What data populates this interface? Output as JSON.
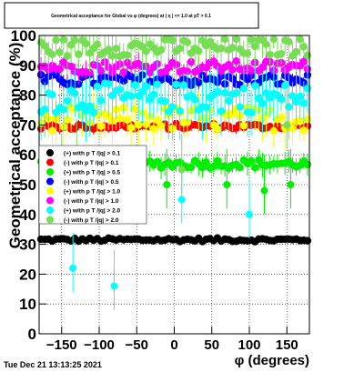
{
  "chart_data": {
    "type": "scatter",
    "title": "Geometrical acceptance for Global vs φ (degrees) at | η | <= 1.0 at pT > 0.1",
    "xlabel": "φ (degrees)",
    "ylabel": "Geometrical acceptance (%)",
    "xlim": [
      -180,
      180
    ],
    "ylim": [
      0,
      100
    ],
    "x_ticks": [
      -150,
      -100,
      -50,
      0,
      50,
      100,
      150
    ],
    "x_tick_labels": [
      "−150",
      "−100",
      "−50",
      "0",
      "50",
      "100",
      "150"
    ],
    "y_ticks": [
      0,
      10,
      20,
      30,
      40,
      50,
      60,
      70,
      80,
      90,
      100
    ],
    "y_tick_labels": [
      "0",
      "10",
      "20",
      "30",
      "40",
      "50",
      "60",
      "70",
      "80",
      "90",
      "100"
    ],
    "grid": true,
    "legend_position": "left-middle",
    "footer_text": "Tue Dec 21 13:13:25 2021",
    "series": [
      {
        "name": "(+) with p T /|q| > 0.1",
        "color": "#000000",
        "mean": 31.5,
        "spread": 0.6,
        "err": 0.8,
        "dropouts": []
      },
      {
        "name": "(-) with p T /|q| > 0.1",
        "color": "#ff0000",
        "mean": 69.5,
        "spread": 1.0,
        "err": 1.5,
        "dropouts": []
      },
      {
        "name": "(+) with p T /|q| > 0.5",
        "color": "#00ee00",
        "mean": 57.0,
        "spread": 1.5,
        "err": 3.0,
        "dropouts": [
          [
            -170,
            50
          ],
          [
            -130,
            50
          ],
          [
            -10,
            50
          ],
          [
            70,
            50
          ],
          [
            120,
            48
          ],
          [
            155,
            50
          ]
        ]
      },
      {
        "name": "(-) with p T /|q| > 0.5",
        "color": "#0000ff",
        "mean": 85.0,
        "spread": 2.0,
        "err": 3.0,
        "dropouts": []
      },
      {
        "name": "(+) with p T /|q| > 1.0",
        "color": "#ffff00",
        "mean": 72.0,
        "spread": 4.0,
        "err": 6.0,
        "dropouts": []
      },
      {
        "name": "(-) with p T /|q| > 1.0",
        "color": "#ff00ff",
        "mean": 89.5,
        "spread": 2.0,
        "err": 3.0,
        "dropouts": []
      },
      {
        "name": "(+) with p T /|q| > 2.0",
        "color": "#00ffff",
        "mean": 79.0,
        "spread": 5.0,
        "err": 8.0,
        "dropouts": [
          [
            -80,
            16
          ],
          [
            -135,
            22
          ],
          [
            100,
            40
          ],
          [
            -160,
            45
          ],
          [
            10,
            45
          ]
        ]
      },
      {
        "name": "(-) with p T /|q| > 2.0",
        "color": "#77dd55",
        "mean": 96.0,
        "spread": 3.0,
        "err": 5.0,
        "dropouts": [
          [
            -150,
            55
          ],
          [
            10,
            55
          ],
          [
            -130,
            60
          ],
          [
            150,
            70
          ]
        ]
      }
    ]
  }
}
